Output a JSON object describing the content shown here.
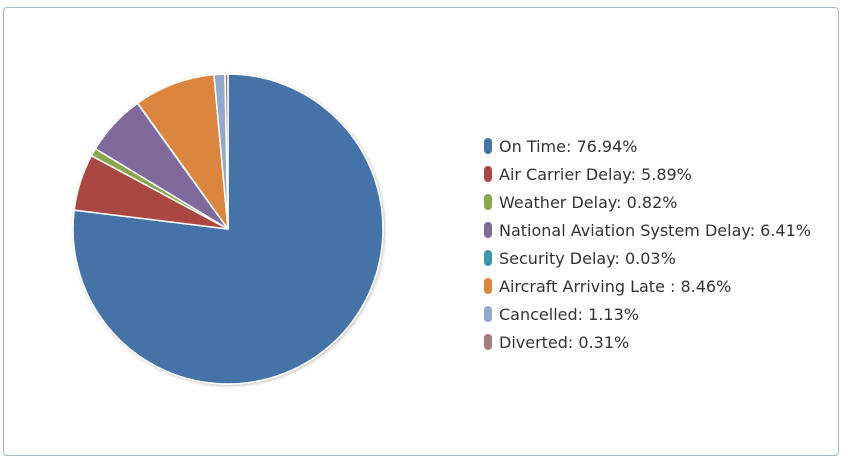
{
  "chart_data": {
    "type": "pie",
    "title": "",
    "slices": [
      {
        "label": "On Time",
        "value": 76.94,
        "display": "On Time: 76.94%",
        "color": "#4572a7"
      },
      {
        "label": "Air Carrier Delay",
        "value": 5.89,
        "display": "Air Carrier Delay: 5.89%",
        "color": "#aa4643"
      },
      {
        "label": "Weather Delay",
        "value": 0.82,
        "display": "Weather Delay: 0.82%",
        "color": "#89a54e"
      },
      {
        "label": "National Aviation System Delay",
        "value": 6.41,
        "display": "National Aviation System Delay: 6.41%",
        "color": "#80699b"
      },
      {
        "label": "Security Delay",
        "value": 0.03,
        "display": "Security Delay: 0.03%",
        "color": "#3d96ae"
      },
      {
        "label": "Aircraft Arriving Late ",
        "value": 8.46,
        "display": "Aircraft Arriving Late : 8.46%",
        "color": "#db843d"
      },
      {
        "label": "Cancelled",
        "value": 1.13,
        "display": "Cancelled: 1.13%",
        "color": "#92a8cd"
      },
      {
        "label": "Diverted",
        "value": 0.31,
        "display": "Diverted: 0.31%",
        "color": "#a47d7c"
      }
    ],
    "start_angle": "top, clockwise",
    "legend_placement": "right"
  }
}
